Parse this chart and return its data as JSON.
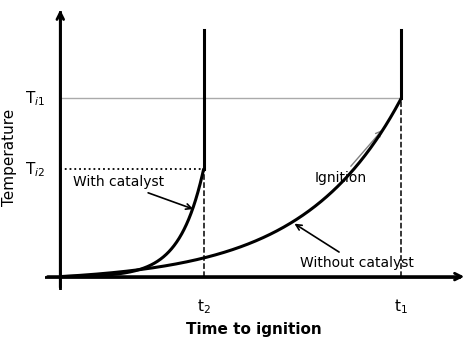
{
  "xlabel": "Time to ignition",
  "ylabel": "Temperature",
  "t2": 0.37,
  "t1": 0.88,
  "Ti1": 0.78,
  "Ti2": 0.47,
  "background_color": "#ffffff",
  "curve_color": "#000000",
  "label_with": "With catalyst",
  "label_without": "Without catalyst",
  "label_ignition": "Ignition",
  "label_Ti1": "T$_{i1}$",
  "label_Ti2": "T$_{i2}$",
  "label_t1": "t$_1$",
  "label_t2": "t$_2$"
}
